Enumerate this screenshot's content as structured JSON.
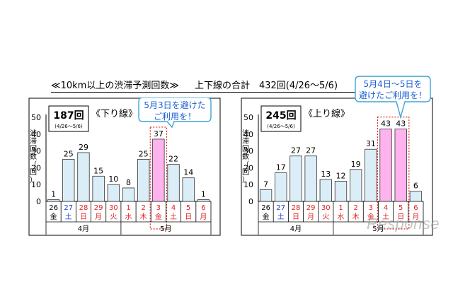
{
  "header": {
    "title": "≪10km以上の渋滞予測回数≫",
    "total": "上下線の合計　432回(4/26～5/6)"
  },
  "ylabel": "渋滞回数（回）",
  "chart_data": [
    {
      "type": "bar",
      "title": "《下り線》",
      "total_count": "187回",
      "period": "(4/26～5/6)",
      "categories": [
        "26",
        "27",
        "28",
        "29",
        "30",
        "1",
        "2",
        "3",
        "4",
        "5",
        "6"
      ],
      "weekdays": [
        "金",
        "土",
        "日",
        "月",
        "火",
        "水",
        "木",
        "金",
        "土",
        "日",
        "月"
      ],
      "weekday_colors": [
        "#000000",
        "#1a3fd6",
        "#e21f1f",
        "#e21f1f",
        "#e21f1f",
        "#e21f1f",
        "#e21f1f",
        "#e21f1f",
        "#e21f1f",
        "#e21f1f",
        "#e21f1f"
      ],
      "months": [
        {
          "label": "4月",
          "start": 0,
          "end": 4
        },
        {
          "label": "5月",
          "start": 5,
          "end": 10
        }
      ],
      "values": [
        1,
        25,
        29,
        15,
        10,
        8,
        25,
        37,
        22,
        14,
        1
      ],
      "highlight": [
        7
      ],
      "yticks": [
        0,
        10,
        20,
        30,
        40,
        50
      ],
      "ylim": [
        0,
        50
      ],
      "callout": [
        "5月3日を避けた",
        "ご利用を！"
      ]
    },
    {
      "type": "bar",
      "title": "《上り線》",
      "total_count": "245回",
      "period": "(4/26～5/6)",
      "categories": [
        "26",
        "27",
        "28",
        "29",
        "30",
        "1",
        "2",
        "3",
        "4",
        "5",
        "6"
      ],
      "weekdays": [
        "金",
        "土",
        "日",
        "月",
        "火",
        "水",
        "木",
        "金",
        "土",
        "日",
        "月"
      ],
      "weekday_colors": [
        "#000000",
        "#1a3fd6",
        "#e21f1f",
        "#e21f1f",
        "#e21f1f",
        "#e21f1f",
        "#e21f1f",
        "#e21f1f",
        "#e21f1f",
        "#e21f1f",
        "#e21f1f"
      ],
      "months": [
        {
          "label": "4月",
          "start": 0,
          "end": 4
        },
        {
          "label": "5月",
          "start": 5,
          "end": 10
        }
      ],
      "values": [
        7,
        17,
        27,
        27,
        13,
        12,
        19,
        31,
        43,
        43,
        6
      ],
      "highlight": [
        8,
        9
      ],
      "yticks": [
        0,
        10,
        20,
        30,
        40,
        50
      ],
      "ylim": [
        0,
        50
      ],
      "callout": [
        "5月4日～5日を",
        "避けたご利用を！"
      ]
    }
  ],
  "watermark": "Response",
  "colors": {
    "bar": "#dbeef7",
    "bar_highlight": "#ffb3ee",
    "callout_text": "#1a5fd6",
    "callout_border": "#3fa3d9",
    "highlight_border": "#e21f1f"
  }
}
